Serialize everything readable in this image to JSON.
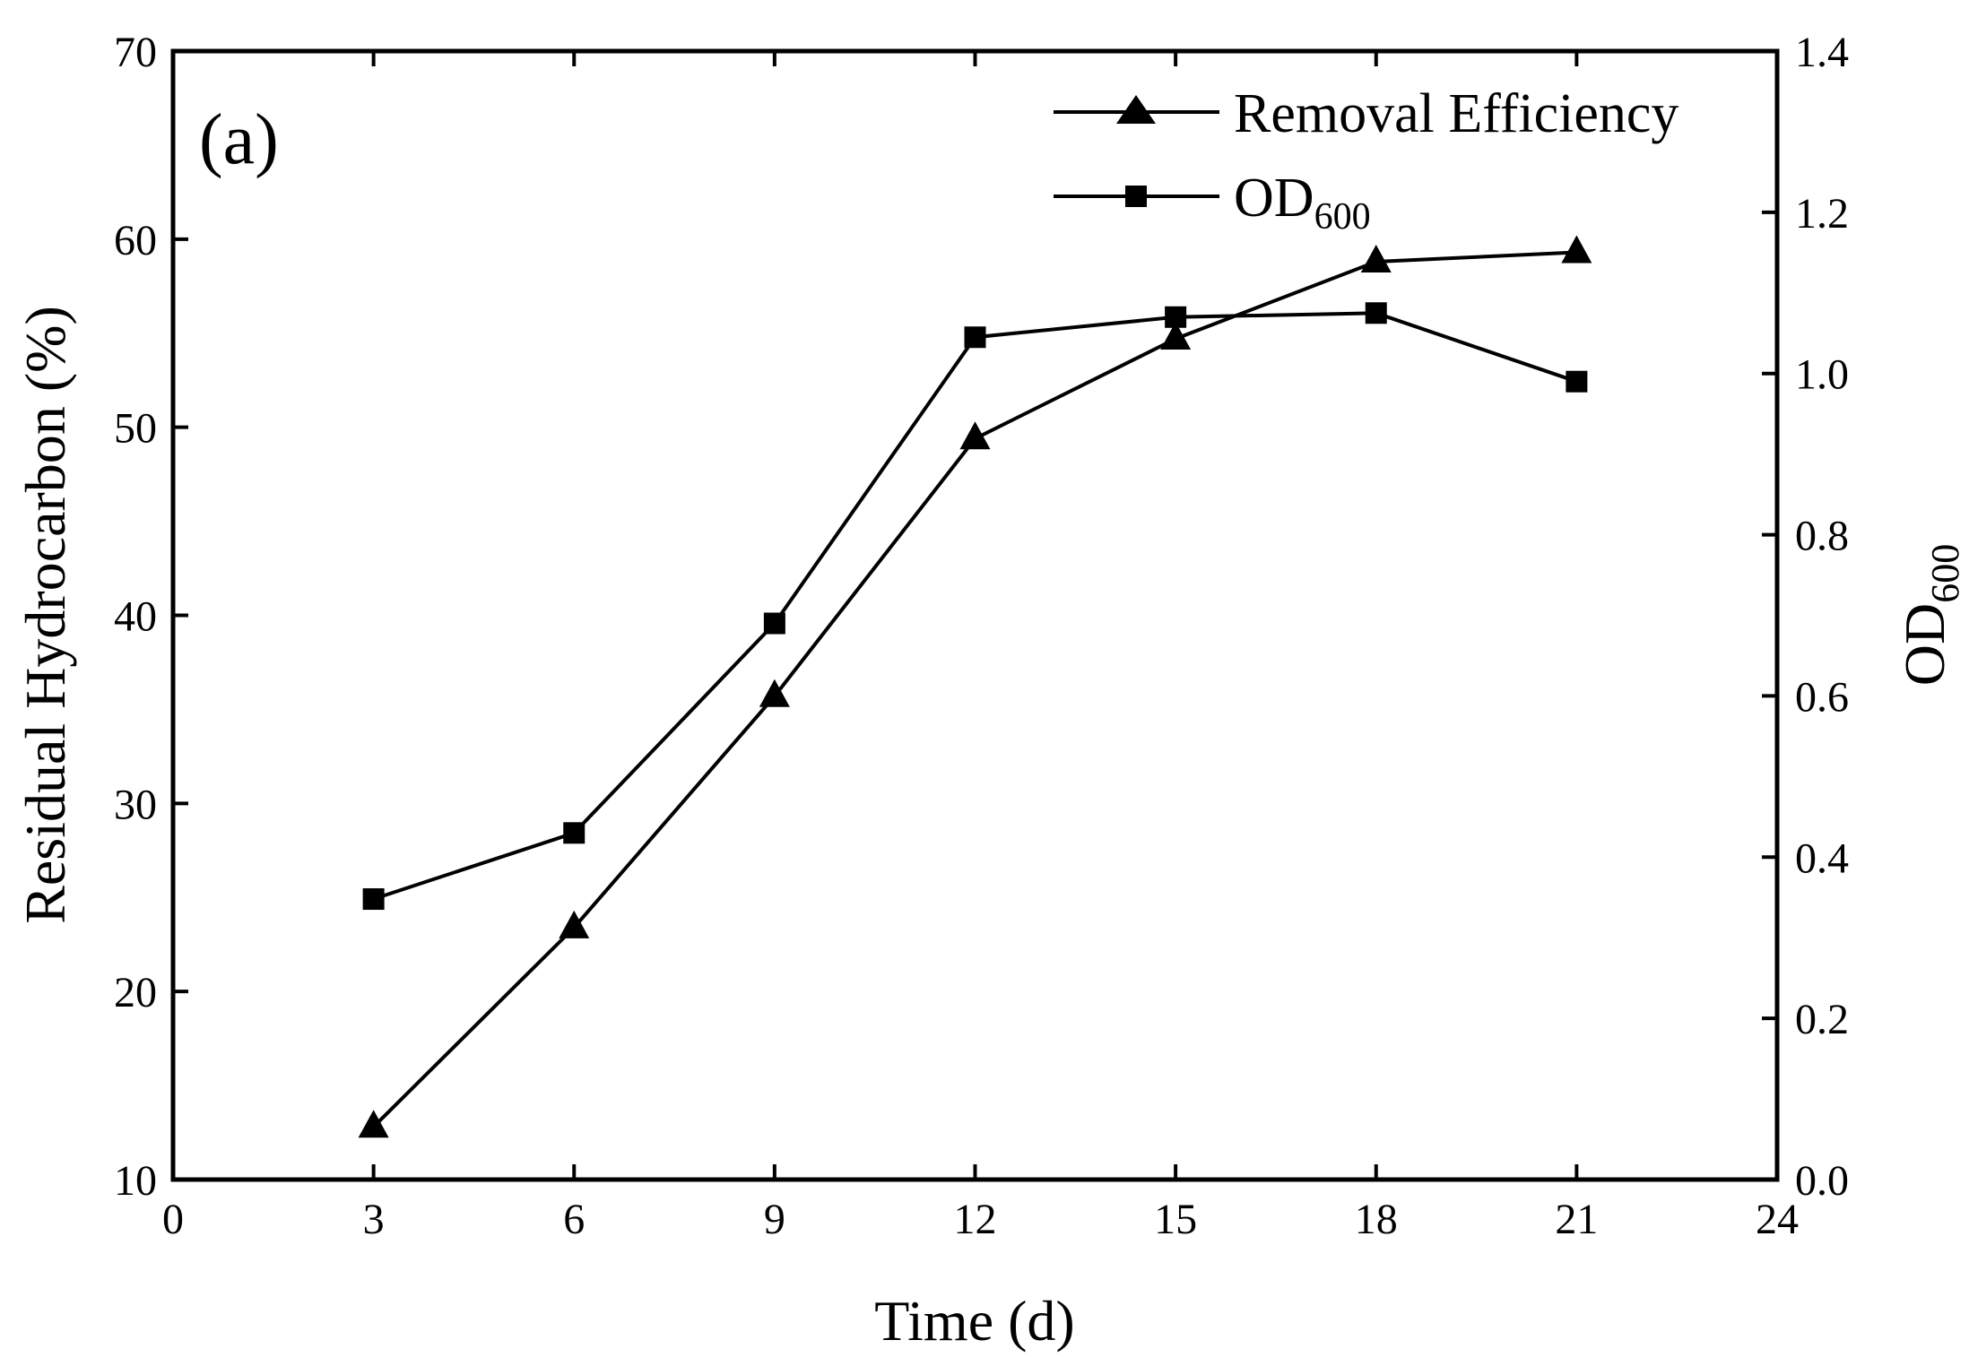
{
  "chart_data": {
    "type": "line",
    "panel_label": "(a)",
    "xlabel": "Time (d)",
    "ylabel": "Residual Hydrocarbon (%)",
    "y2label": {
      "base": "OD",
      "sub": "600"
    },
    "xlim": [
      0,
      24
    ],
    "ylim": [
      10,
      70
    ],
    "y2lim": [
      0,
      1.4
    ],
    "xticks": [
      "0",
      "3",
      "6",
      "9",
      "12",
      "15",
      "18",
      "21",
      "24"
    ],
    "yticks": [
      "10",
      "20",
      "30",
      "40",
      "50",
      "60",
      "70"
    ],
    "y2ticks": [
      "0.0",
      "0.2",
      "0.4",
      "0.6",
      "0.8",
      "1.0",
      "1.2",
      "1.4"
    ],
    "grid": false,
    "legend_position": "top-right",
    "series": [
      {
        "name": "Removal Efficiency",
        "legend_label": "Removal Efficiency",
        "marker": "triangle",
        "axis": "left",
        "color": "#000000",
        "x": [
          3,
          6,
          9,
          12,
          15,
          18,
          21
        ],
        "values": [
          12.8,
          23.4,
          35.7,
          49.4,
          54.7,
          58.8,
          59.3
        ]
      },
      {
        "name": "OD600",
        "legend_label": {
          "base": "OD",
          "sub": "600"
        },
        "marker": "square",
        "axis": "right",
        "color": "#000000",
        "x": [
          3,
          6,
          9,
          12,
          15,
          18,
          21
        ],
        "values": [
          0.348,
          0.43,
          0.69,
          1.045,
          1.07,
          1.075,
          0.99
        ]
      }
    ]
  }
}
